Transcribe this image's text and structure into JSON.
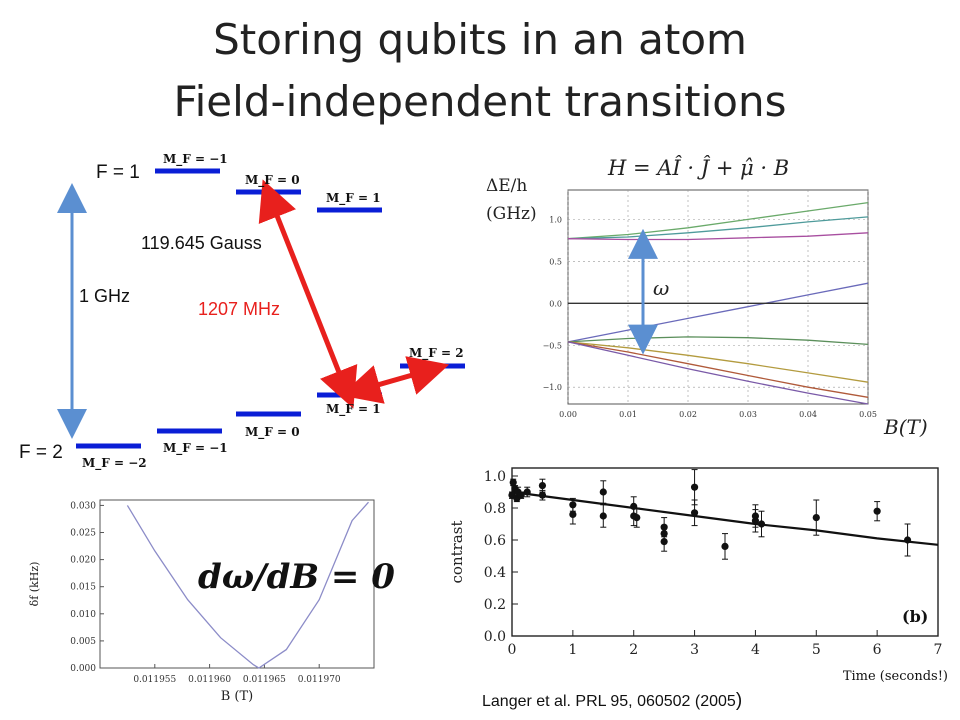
{
  "title": {
    "line1": "Storing qubits in an atom",
    "line2": "Field-independent transitions"
  },
  "level_diagram": {
    "f1_label": "F = 1",
    "f2_label": "F = 2",
    "gap_label": "1 GHz",
    "field_label": "119.645 Gauss",
    "transition_label": "1207 MHz",
    "f1_levels": [
      "M_F = −1",
      "M_F = 0",
      "M_F = 1"
    ],
    "f2_levels": [
      "M_F = −2",
      "M_F = −1",
      "M_F = 0",
      "M_F = 1",
      "M_F = 2"
    ],
    "colors": {
      "level": "#0a1ed6",
      "arrow_gap": "#5b8fd1",
      "arrow_transition": "#e8201d",
      "transition_text": "#e8201d"
    }
  },
  "breit_rabi_plot": {
    "hamiltonian": "H = AÎ · Ĵ + μ̂ · B",
    "ylabel": "ΔE/h (GHz)",
    "xlabel": "B(T)",
    "omega_label": "ω",
    "x_ticks": [
      "0.00",
      "0.01",
      "0.02",
      "0.03",
      "0.04",
      "0.05"
    ],
    "y_ticks": [
      "1.0",
      "0.5",
      "0.0",
      "−0.5",
      "−1.0"
    ]
  },
  "chart_data": [
    {
      "type": "line",
      "xlabel": "B(T)",
      "ylabel": "ΔE/h (GHz)",
      "xlim": [
        0,
        0.05
      ],
      "ylim": [
        -1.2,
        1.35
      ],
      "series": [
        {
          "color": "#6aaa6a",
          "x": [
            0,
            0.01,
            0.02,
            0.03,
            0.04,
            0.05
          ],
          "y": [
            0.77,
            0.82,
            0.9,
            1.0,
            1.1,
            1.2
          ]
        },
        {
          "color": "#4f9b9b",
          "x": [
            0,
            0.01,
            0.02,
            0.03,
            0.04,
            0.05
          ],
          "y": [
            0.77,
            0.79,
            0.84,
            0.9,
            0.97,
            1.03
          ]
        },
        {
          "color": "#a84fa0",
          "x": [
            0,
            0.01,
            0.02,
            0.03,
            0.04,
            0.05
          ],
          "y": [
            0.77,
            0.76,
            0.76,
            0.78,
            0.8,
            0.84
          ]
        },
        {
          "color": "#6a6aba",
          "x": [
            0,
            0.01,
            0.02,
            0.03,
            0.04,
            0.05
          ],
          "y": [
            -0.46,
            -0.32,
            -0.18,
            -0.04,
            0.1,
            0.24
          ]
        },
        {
          "color": "#5b8f5b",
          "x": [
            0,
            0.01,
            0.02,
            0.03,
            0.04,
            0.05
          ],
          "y": [
            -0.46,
            -0.42,
            -0.4,
            -0.41,
            -0.44,
            -0.49
          ]
        },
        {
          "color": "#b39b3f",
          "x": [
            0,
            0.01,
            0.02,
            0.03,
            0.04,
            0.05
          ],
          "y": [
            -0.46,
            -0.53,
            -0.62,
            -0.72,
            -0.83,
            -0.94
          ]
        },
        {
          "color": "#b05a3a",
          "x": [
            0,
            0.01,
            0.02,
            0.03,
            0.04,
            0.05
          ],
          "y": [
            -0.46,
            -0.58,
            -0.72,
            -0.86,
            -1.0,
            -1.12
          ]
        },
        {
          "color": "#7a5aa8",
          "x": [
            0,
            0.01,
            0.02,
            0.03,
            0.04,
            0.05
          ],
          "y": [
            -0.46,
            -0.62,
            -0.78,
            -0.93,
            -1.07,
            -1.2
          ]
        },
        {
          "color": "#333333",
          "x": [
            0,
            0.05
          ],
          "y": [
            0,
            0
          ]
        }
      ]
    },
    {
      "type": "line",
      "xlabel": "B (T)",
      "ylabel": "δf (kHz)",
      "xlim": [
        0.01195,
        0.011975
      ],
      "ylim": [
        0,
        0.031
      ],
      "x_ticks": [
        "0.011955",
        "0.011960",
        "0.011965",
        "0.011970"
      ],
      "y_ticks": [
        "0.000",
        "0.005",
        "0.010",
        "0.015",
        "0.020",
        "0.025",
        "0.030"
      ],
      "annotation": "dω/dB = 0",
      "series": [
        {
          "color": "#8c8cc8",
          "x": [
            0.0119525,
            0.011955,
            0.011958,
            0.011961,
            0.011964,
            0.0119645,
            0.011967,
            0.01197,
            0.011973,
            0.0119745
          ],
          "y": [
            0.03,
            0.0216,
            0.0126,
            0.0056,
            0.0006,
            0.0,
            0.0034,
            0.0126,
            0.0272,
            0.0306
          ]
        }
      ]
    },
    {
      "type": "scatter",
      "ylabel": "contrast",
      "xlabel": "Time (seconds!)",
      "panel_label": "(b)",
      "xlim": [
        0,
        7
      ],
      "ylim": [
        0,
        1.05
      ],
      "x_ticks": [
        "0",
        "1",
        "2",
        "3",
        "4",
        "5",
        "6",
        "7"
      ],
      "y_ticks": [
        "0.0",
        "0.2",
        "0.4",
        "0.6",
        "0.8",
        "1.0"
      ],
      "points": [
        {
          "x": 0.0,
          "y": 0.88,
          "err": 0.02
        },
        {
          "x": 0.02,
          "y": 0.96,
          "err": 0.02
        },
        {
          "x": 0.05,
          "y": 0.92,
          "err": 0.02
        },
        {
          "x": 0.08,
          "y": 0.86,
          "err": 0.02
        },
        {
          "x": 0.1,
          "y": 0.9,
          "err": 0.03
        },
        {
          "x": 0.15,
          "y": 0.88,
          "err": 0.02
        },
        {
          "x": 0.25,
          "y": 0.9,
          "err": 0.03
        },
        {
          "x": 0.5,
          "y": 0.94,
          "err": 0.04
        },
        {
          "x": 0.5,
          "y": 0.88,
          "err": 0.03
        },
        {
          "x": 1.0,
          "y": 0.82,
          "err": 0.04
        },
        {
          "x": 1.0,
          "y": 0.76,
          "err": 0.06
        },
        {
          "x": 1.5,
          "y": 0.9,
          "err": 0.07
        },
        {
          "x": 1.5,
          "y": 0.75,
          "err": 0.07
        },
        {
          "x": 2.0,
          "y": 0.81,
          "err": 0.06
        },
        {
          "x": 2.0,
          "y": 0.75,
          "err": 0.06
        },
        {
          "x": 2.05,
          "y": 0.74,
          "err": 0.06
        },
        {
          "x": 2.5,
          "y": 0.68,
          "err": 0.06
        },
        {
          "x": 2.5,
          "y": 0.64,
          "err": 0.05
        },
        {
          "x": 2.5,
          "y": 0.59,
          "err": 0.06
        },
        {
          "x": 3.0,
          "y": 0.93,
          "err": 0.11
        },
        {
          "x": 3.0,
          "y": 0.77,
          "err": 0.08
        },
        {
          "x": 3.5,
          "y": 0.56,
          "err": 0.08
        },
        {
          "x": 4.0,
          "y": 0.75,
          "err": 0.07
        },
        {
          "x": 4.0,
          "y": 0.72,
          "err": 0.07
        },
        {
          "x": 4.1,
          "y": 0.7,
          "err": 0.08
        },
        {
          "x": 5.0,
          "y": 0.74,
          "err": 0.11
        },
        {
          "x": 6.0,
          "y": 0.78,
          "err": 0.06
        },
        {
          "x": 6.5,
          "y": 0.6,
          "err": 0.1
        }
      ],
      "fit": {
        "x": [
          0,
          1,
          2,
          3,
          4,
          5,
          6,
          7
        ],
        "y": [
          0.9,
          0.85,
          0.8,
          0.75,
          0.7,
          0.66,
          0.61,
          0.57
        ]
      }
    }
  ],
  "citation": {
    "text": "Langer et al. PRL 95, 060502  (2005",
    "paren": ")"
  }
}
